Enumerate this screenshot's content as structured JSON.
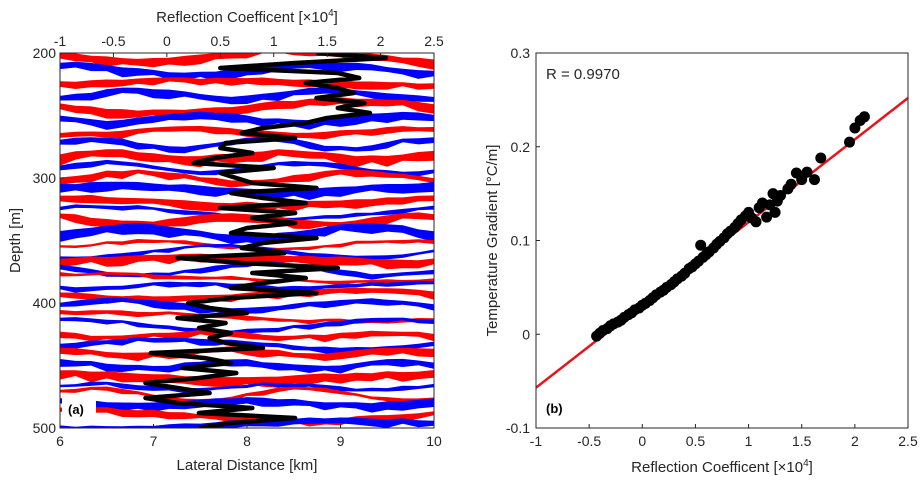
{
  "chart_data": [
    {
      "panel_label": "(a)",
      "type": "line",
      "description_kind": "seismic section (red/white/blue wiggle image) overlaid with a black reflection-coefficient trace",
      "xlabel": "Lateral Distance [km]",
      "xlim": [
        6,
        10
      ],
      "xticks": [
        "6",
        "7",
        "8",
        "9",
        "10"
      ],
      "top_xlabel_main": "Reflection Coefficent [",
      "top_xlabel_times": "×",
      "top_xlabel_base": "10",
      "top_xlabel_exp": "4",
      "top_xlabel_close": "]",
      "top_xlim": [
        -1,
        2.5
      ],
      "top_xticks": [
        "-1",
        "-0.5",
        "0",
        "0.5",
        "1",
        "1.5",
        "2",
        "2.5"
      ],
      "ylabel": "Depth [m]",
      "ylim": [
        200,
        500
      ],
      "y_reversed": true,
      "yticks": [
        "200",
        "300",
        "400",
        "500"
      ],
      "image_colors": [
        "#ff0000",
        "#ffffff",
        "#0000ff"
      ],
      "trace_color": "#000000",
      "trace": {
        "depth": [
          200,
          204,
          208,
          212,
          216,
          220,
          224,
          228,
          232,
          236,
          240,
          244,
          248,
          252,
          256,
          260,
          264,
          268,
          272,
          276,
          280,
          284,
          288,
          292,
          296,
          300,
          304,
          308,
          312,
          316,
          320,
          324,
          328,
          332,
          336,
          340,
          344,
          348,
          352,
          356,
          360,
          364,
          368,
          372,
          376,
          380,
          384,
          388,
          392,
          396,
          400,
          404,
          408,
          412,
          416,
          420,
          424,
          428,
          432,
          436,
          440,
          444,
          448,
          452,
          456,
          460,
          464,
          468,
          472,
          476,
          480,
          484,
          488,
          492,
          496,
          500
        ],
        "x": [
          1.4,
          2.05,
          1.2,
          0.5,
          1.6,
          1.8,
          1.3,
          1.6,
          1.75,
          1.4,
          1.85,
          1.6,
          1.9,
          1.5,
          1.3,
          0.9,
          0.7,
          1.2,
          0.55,
          0.5,
          0.8,
          0.45,
          0.25,
          1.0,
          0.5,
          0.65,
          0.8,
          1.4,
          0.6,
          0.9,
          1.3,
          0.5,
          1.2,
          0.8,
          1.2,
          0.75,
          0.6,
          1.4,
          0.9,
          0.7,
          1.1,
          0.1,
          0.7,
          1.6,
          0.8,
          1.3,
          0.9,
          0.6,
          1.4,
          0.6,
          0.2,
          0.4,
          0.75,
          0.1,
          0.55,
          0.3,
          0.6,
          0.4,
          0.55,
          0.9,
          -0.15,
          0.35,
          0.6,
          0.15,
          0.65,
          0.3,
          -0.2,
          0.1,
          0.4,
          -0.2,
          0.1,
          0.8,
          0.3,
          1.2,
          0.6,
          0.3
        ]
      }
    },
    {
      "panel_label": "(b)",
      "type": "scatter",
      "xlabel_main": "Reflection Coefficent [",
      "xlabel_times": "×",
      "xlabel_base": "10",
      "xlabel_exp": "4",
      "xlabel_close": "]",
      "xlim": [
        -1,
        2.5
      ],
      "xticks": [
        "-1",
        "-0.5",
        "0",
        "0.5",
        "1",
        "1.5",
        "2",
        "2.5"
      ],
      "ylabel": "Temperature Gradient [°C/m]",
      "ylim": [
        -0.1,
        0.3
      ],
      "yticks": [
        "-0.1",
        "0",
        "0.1",
        "0.2",
        "0.3"
      ],
      "annotation": "R = 0.9970",
      "marker_color": "#000000",
      "fit_line_color": "#e8141c",
      "fit_line": {
        "x": [
          -1,
          2.5
        ],
        "y": [
          -0.057,
          0.252
        ]
      },
      "points": {
        "x": [
          -0.43,
          -0.4,
          -0.37,
          -0.33,
          -0.3,
          -0.27,
          -0.23,
          -0.2,
          -0.17,
          -0.13,
          -0.1,
          -0.07,
          -0.03,
          0.0,
          0.03,
          0.07,
          0.1,
          0.13,
          0.17,
          0.2,
          0.23,
          0.27,
          0.3,
          0.33,
          0.37,
          0.4,
          0.44,
          0.47,
          0.5,
          0.53,
          0.57,
          0.6,
          0.63,
          0.67,
          0.7,
          0.73,
          0.77,
          0.8,
          0.83,
          0.87,
          0.9,
          0.93,
          0.97,
          1.0,
          1.03,
          1.07,
          1.1,
          1.13,
          1.17,
          1.2,
          1.23,
          1.27,
          1.3,
          1.37,
          1.4,
          1.45,
          1.5,
          1.55,
          1.62,
          1.68,
          1.95,
          2.0,
          2.05,
          2.09,
          0.55,
          1.25
        ],
        "y": [
          -0.002,
          0.001,
          0.004,
          0.006,
          0.009,
          0.011,
          0.013,
          0.015,
          0.018,
          0.021,
          0.023,
          0.026,
          0.028,
          0.031,
          0.033,
          0.036,
          0.039,
          0.042,
          0.045,
          0.047,
          0.05,
          0.053,
          0.056,
          0.059,
          0.062,
          0.065,
          0.07,
          0.072,
          0.075,
          0.078,
          0.082,
          0.085,
          0.088,
          0.092,
          0.096,
          0.099,
          0.103,
          0.107,
          0.11,
          0.114,
          0.118,
          0.122,
          0.126,
          0.13,
          0.124,
          0.12,
          0.135,
          0.14,
          0.125,
          0.138,
          0.15,
          0.142,
          0.148,
          0.155,
          0.16,
          0.172,
          0.165,
          0.173,
          0.165,
          0.188,
          0.205,
          0.22,
          0.228,
          0.232,
          0.095,
          0.13
        ]
      }
    }
  ]
}
